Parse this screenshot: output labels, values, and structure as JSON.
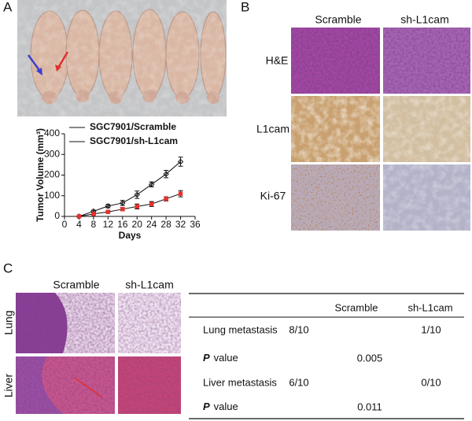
{
  "panels": {
    "a": "A",
    "b": "B",
    "c": "C"
  },
  "chart_data": {
    "type": "line",
    "x": [
      4,
      8,
      12,
      16,
      20,
      24,
      28,
      32
    ],
    "series": [
      {
        "name": "SGC7901/Scramble",
        "color": "#2b2e8c",
        "values": [
          0,
          25,
          50,
          65,
          105,
          155,
          205,
          265
        ],
        "errors": [
          0,
          5,
          8,
          12,
          18,
          12,
          18,
          22
        ]
      },
      {
        "name": "SGC7901/sh-L1cam",
        "color": "#e8302a",
        "values": [
          0,
          12,
          22,
          35,
          48,
          60,
          85,
          110
        ],
        "errors": [
          0,
          4,
          5,
          8,
          12,
          12,
          10,
          15
        ]
      }
    ],
    "x_label": "Days",
    "y_label": "Tumor Volume (mm³)",
    "xlim": [
      0,
      36
    ],
    "xticks": [
      0,
      4,
      8,
      12,
      16,
      20,
      24,
      28,
      32,
      36
    ],
    "ylim": [
      0,
      400
    ],
    "yticks": [
      0,
      100,
      200,
      300,
      400
    ]
  },
  "panel_b": {
    "columns": [
      "Scramble",
      "sh-L1cam"
    ],
    "rows": [
      "H&E",
      "L1cam",
      "Ki-67"
    ]
  },
  "panel_c": {
    "columns": [
      "Scramble",
      "sh-L1cam"
    ],
    "rows": [
      "Lung",
      "Liver"
    ]
  },
  "table": {
    "columns": [
      "Scramble",
      "sh-L1cam"
    ],
    "rows": [
      {
        "label": "Lung metastasis",
        "cells": [
          "8/10",
          "1/10"
        ]
      },
      {
        "label": {
          "p": "P",
          "text": "value"
        },
        "value": "0.005"
      },
      {
        "label": "Liver metastasis",
        "cells": [
          "6/10",
          "0/10"
        ]
      },
      {
        "label": {
          "p": "P",
          "text": "value"
        },
        "value": "0.011"
      }
    ]
  }
}
